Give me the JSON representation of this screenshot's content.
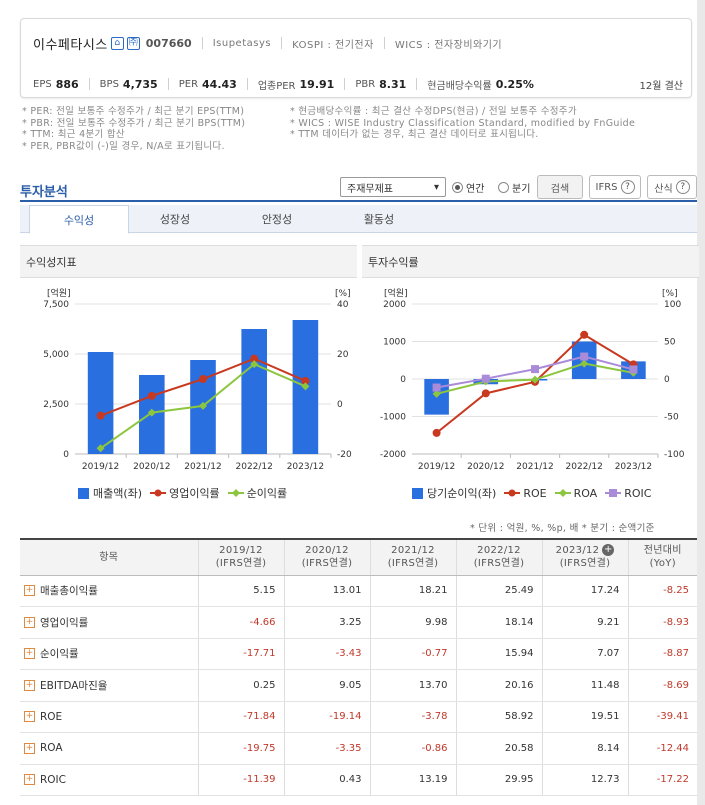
{
  "header": {
    "name": "이수페타시스",
    "icon_home": "⌂",
    "icon_building": "㈜",
    "code": "007660",
    "eng_name": "Isupetasys",
    "market": "KOSPI : 전기전자",
    "wics": "WICS : 전자장비와기기",
    "eps_label": "EPS",
    "eps_value": "886",
    "bps_label": "BPS",
    "bps_value": "4,735",
    "per_label": "PER",
    "per_value": "44.43",
    "ind_per_label": "업종PER",
    "ind_per_value": "19.91",
    "pbr_label": "PBR",
    "pbr_value": "8.31",
    "div_label": "현금배당수익률",
    "div_value": "0.25%",
    "settle": "12월 결산"
  },
  "notes_left": [
    "* PER: 전일 보통주 수정주가 / 최근 분기 EPS(TTM)",
    "* PBR: 전일 보통주 수정주가 / 최근 분기 BPS(TTM)",
    "* TTM: 최근 4분기 합산",
    "* PER, PBR값이 (-)일 경우, N/A로 표기됩니다."
  ],
  "notes_right": [
    "* 현금배당수익률 : 최근 결산 수정DPS(현금) / 전일 보통주 수정주가",
    "* WICS : WISE Industry Classification Standard, modified by FnGuide",
    "* TTM 데이터가 없는 경우, 최근 결산 데이터로 표시됩니다."
  ],
  "section": {
    "title": "투자분석",
    "select_value": "주재무제표",
    "radio_annual": "연간",
    "radio_quarter": "분기",
    "search_btn": "검색",
    "ifrs_btn": "IFRS",
    "formula_btn": "산식"
  },
  "tabs": [
    "수익성",
    "성장성",
    "안정성",
    "활동성"
  ],
  "chart_left_title": "수익성지표",
  "chart_right_title": "투자수익률",
  "colors": {
    "bar": "#2a6fe0",
    "red": "#c8391f",
    "green": "#8cc63e",
    "purple": "#a98bd8"
  },
  "chart_data": [
    {
      "type": "bar",
      "title": "수익성지표",
      "categories": [
        "2019/12",
        "2020/12",
        "2021/12",
        "2022/12",
        "2023/12"
      ],
      "y_unit_left": "[억원]",
      "y_unit_right": "[%]",
      "ylim_left": [
        0,
        7500
      ],
      "ylim_right": [
        -20,
        40
      ],
      "yticks_left": [
        "7,500",
        "5,000",
        "2,500",
        "0"
      ],
      "yticks_right": [
        "40",
        "20",
        "0",
        "-20"
      ],
      "series": [
        {
          "name": "매출액(좌)",
          "kind": "bar",
          "axis": "left",
          "values": [
            5100,
            3950,
            4700,
            6250,
            6700
          ]
        },
        {
          "name": "영업이익률",
          "kind": "line",
          "axis": "right",
          "values": [
            -4.66,
            3.25,
            9.98,
            18.14,
            9.21
          ]
        },
        {
          "name": "순이익률",
          "kind": "line",
          "axis": "right",
          "values": [
            -17.71,
            -3.43,
            -0.77,
            15.94,
            7.07
          ]
        }
      ]
    },
    {
      "type": "bar",
      "title": "투자수익률",
      "categories": [
        "2019/12",
        "2020/12",
        "2021/12",
        "2022/12",
        "2023/12"
      ],
      "y_unit_left": "[억원]",
      "y_unit_right": "[%]",
      "ylim_left": [
        -2000,
        2000
      ],
      "ylim_right": [
        -100,
        100
      ],
      "yticks_left": [
        "2000",
        "1000",
        "0",
        "-1000",
        "-2000"
      ],
      "yticks_right": [
        "100",
        "50",
        "0",
        "-50",
        "-100"
      ],
      "series": [
        {
          "name": "당기순이익(좌)",
          "kind": "bar",
          "axis": "left",
          "values": [
            -950,
            -140,
            -40,
            1000,
            470
          ]
        },
        {
          "name": "ROE",
          "kind": "line",
          "axis": "right",
          "values": [
            -71.84,
            -19.14,
            -3.78,
            58.92,
            19.51
          ]
        },
        {
          "name": "ROA",
          "kind": "line",
          "axis": "right",
          "values": [
            -19.75,
            -3.35,
            -0.86,
            20.58,
            8.14
          ]
        },
        {
          "name": "ROIC",
          "kind": "line",
          "axis": "right",
          "values": [
            -11.39,
            0.43,
            13.19,
            29.95,
            12.73
          ]
        }
      ]
    }
  ],
  "unit_note": "* 단위 : 억원, %, %p, 배    * 분기 : 순액기준",
  "table": {
    "col_item": "항목",
    "columns": [
      {
        "year": "2019/12",
        "sub": "(IFRS연결)"
      },
      {
        "year": "2020/12",
        "sub": "(IFRS연결)"
      },
      {
        "year": "2021/12",
        "sub": "(IFRS연결)"
      },
      {
        "year": "2022/12",
        "sub": "(IFRS연결)"
      },
      {
        "year": "2023/12",
        "sub": "(IFRS연결)"
      }
    ],
    "col_yoy": "전년대비",
    "col_yoy_sub": "(YoY)",
    "rows": [
      {
        "label": "매출총이익률",
        "values": [
          "5.15",
          "13.01",
          "18.21",
          "25.49",
          "17.24",
          "-8.25"
        ]
      },
      {
        "label": "영업이익률",
        "values": [
          "-4.66",
          "3.25",
          "9.98",
          "18.14",
          "9.21",
          "-8.93"
        ]
      },
      {
        "label": "순이익률",
        "values": [
          "-17.71",
          "-3.43",
          "-0.77",
          "15.94",
          "7.07",
          "-8.87"
        ]
      },
      {
        "label": "EBITDA마진율",
        "values": [
          "0.25",
          "9.05",
          "13.70",
          "20.16",
          "11.48",
          "-8.69"
        ]
      },
      {
        "label": "ROE",
        "values": [
          "-71.84",
          "-19.14",
          "-3.78",
          "58.92",
          "19.51",
          "-39.41"
        ]
      },
      {
        "label": "ROA",
        "values": [
          "-19.75",
          "-3.35",
          "-0.86",
          "20.58",
          "8.14",
          "-12.44"
        ]
      },
      {
        "label": "ROIC",
        "values": [
          "-11.39",
          "0.43",
          "13.19",
          "29.95",
          "12.73",
          "-17.22"
        ]
      }
    ]
  }
}
